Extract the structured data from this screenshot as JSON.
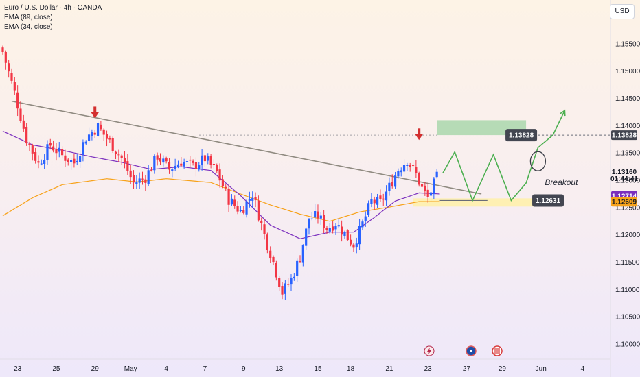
{
  "header": {
    "symbol_line": "Euro / U.S. Dollar · 4h · OANDA",
    "ema_slow": "EMA (89, close)",
    "ema_fast": "EMA (34, close)"
  },
  "currency_button": "USD",
  "chart_data": {
    "type": "candlestick",
    "ylim": [
      1.098,
      1.1585
    ],
    "y_ticks": [
      "1.15500",
      "1.15000",
      "1.14500",
      "1.14000",
      "1.13500",
      "1.13000",
      "1.12500",
      "1.12000",
      "1.11500",
      "1.11000",
      "1.10500",
      "1.10000"
    ],
    "x_ticks": [
      "23",
      "25",
      "29",
      "May",
      "4",
      "7",
      "9",
      "13",
      "15",
      "18",
      "21",
      "23",
      "27",
      "29",
      "Jun",
      "4"
    ],
    "bar_count": 163,
    "anchors": [
      [
        0,
        1.1535
      ],
      [
        4,
        1.146
      ],
      [
        8,
        1.1375
      ],
      [
        12,
        1.133
      ],
      [
        16,
        1.1365
      ],
      [
        20,
        1.1345
      ],
      [
        24,
        1.1332
      ],
      [
        28,
        1.1378
      ],
      [
        32,
        1.1398
      ],
      [
        36,
        1.137
      ],
      [
        40,
        1.134
      ],
      [
        44,
        1.1295
      ],
      [
        48,
        1.1305
      ],
      [
        52,
        1.1345
      ],
      [
        56,
        1.132
      ],
      [
        60,
        1.1335
      ],
      [
        64,
        1.1325
      ],
      [
        68,
        1.134
      ],
      [
        72,
        1.1315
      ],
      [
        76,
        1.1265
      ],
      [
        80,
        1.1243
      ],
      [
        84,
        1.1275
      ],
      [
        88,
        1.12
      ],
      [
        91,
        1.115
      ],
      [
        94,
        1.1095
      ],
      [
        97,
        1.1118
      ],
      [
        100,
        1.116
      ],
      [
        103,
        1.123
      ],
      [
        106,
        1.1235
      ],
      [
        109,
        1.1212
      ],
      [
        112,
        1.1222
      ],
      [
        115,
        1.1202
      ],
      [
        118,
        1.1182
      ],
      [
        121,
        1.122
      ],
      [
        124,
        1.1262
      ],
      [
        127,
        1.1258
      ],
      [
        130,
        1.1288
      ],
      [
        133,
        1.132
      ],
      [
        136,
        1.1338
      ],
      [
        139,
        1.131
      ],
      [
        141,
        1.1285
      ],
      [
        143,
        1.1268
      ],
      [
        146,
        1.1305
      ]
    ],
    "ema_89": [
      [
        0,
        1.1235
      ],
      [
        10,
        1.1268
      ],
      [
        20,
        1.1292
      ],
      [
        35,
        1.1303
      ],
      [
        45,
        1.1297
      ],
      [
        55,
        1.1303
      ],
      [
        70,
        1.1296
      ],
      [
        80,
        1.1275
      ],
      [
        90,
        1.1255
      ],
      [
        100,
        1.1238
      ],
      [
        110,
        1.1225
      ],
      [
        120,
        1.1242
      ],
      [
        130,
        1.1251
      ],
      [
        140,
        1.1261
      ],
      [
        147,
        1.1261
      ]
    ],
    "ema_34": [
      [
        0,
        1.139
      ],
      [
        10,
        1.1365
      ],
      [
        20,
        1.1355
      ],
      [
        30,
        1.1343
      ],
      [
        40,
        1.1333
      ],
      [
        50,
        1.132
      ],
      [
        60,
        1.1325
      ],
      [
        70,
        1.1318
      ],
      [
        80,
        1.1272
      ],
      [
        90,
        1.1218
      ],
      [
        100,
        1.1193
      ],
      [
        110,
        1.1205
      ],
      [
        118,
        1.1205
      ],
      [
        125,
        1.1232
      ],
      [
        132,
        1.1262
      ],
      [
        140,
        1.1277
      ],
      [
        147,
        1.1275
      ]
    ],
    "trendline": [
      [
        3,
        1.1445
      ],
      [
        161,
        1.1275
      ]
    ],
    "resistance_dashed": 1.13828,
    "support_line": [
      [
        147,
        1.12631
      ],
      [
        163,
        1.12631
      ]
    ],
    "target_box": [
      [
        146,
        1.13828
      ],
      [
        176,
        1.141
      ]
    ],
    "support_box": [
      [
        138,
        1.1267
      ],
      [
        185,
        1.1252
      ]
    ],
    "projection": [
      [
        148,
        1.1313
      ],
      [
        152,
        1.1352
      ],
      [
        158,
        1.1263
      ],
      [
        165,
        1.1347
      ],
      [
        171,
        1.1263
      ],
      [
        176,
        1.1295
      ],
      [
        180,
        1.136
      ],
      [
        185,
        1.13828
      ],
      [
        189,
        1.1428
      ]
    ],
    "breakout_circle": [
      180,
      1.1335
    ],
    "down_arrows": [
      [
        31,
        1.1415
      ],
      [
        140,
        1.1375
      ]
    ],
    "annotations": [
      "Breakout"
    ],
    "price_tags": [
      {
        "label": "1.13828",
        "value": 1.13828,
        "style": "dark"
      },
      {
        "label": "1.12631",
        "value": 1.12631,
        "style": "dark"
      }
    ],
    "axis_tags": [
      {
        "label": "1.13828",
        "value": 1.13828,
        "style": "dark"
      },
      {
        "label": "1.13160",
        "value": 1.1316,
        "style": "plain"
      },
      {
        "label": "01:44:41",
        "value": 1.1303,
        "style": "plain"
      },
      {
        "label": "1.12714",
        "value": 1.12714,
        "style": "purple"
      },
      {
        "label": "1.12609",
        "value": 1.12609,
        "style": "orange"
      }
    ],
    "event_icons": [
      "lightning-icon",
      "us-flag-icon",
      "eu-flag-icon"
    ],
    "colors": {
      "up": "#2962ff",
      "down": "#f23645",
      "ema_89": "#f7a21a",
      "ema_34": "#7b2fbe",
      "trendline": "#8f8a80",
      "projection": "#4caf50",
      "target_box": "#a5d6a7",
      "support_box": "#fff0a8",
      "arrow": "#d32f2f",
      "tag_dark": "#434651",
      "tag_purple": "#7b2fbe",
      "tag_orange": "#f7a21a"
    }
  }
}
